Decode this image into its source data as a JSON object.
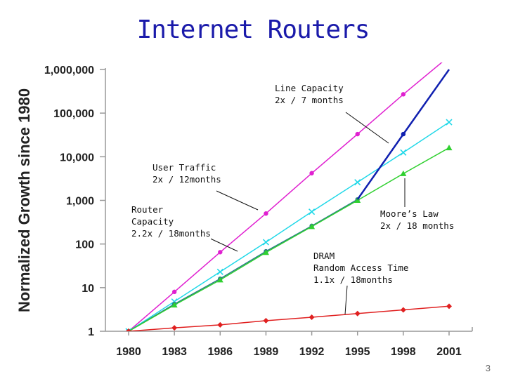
{
  "slide": {
    "title": "Internet Routers",
    "page_number": "3"
  },
  "chart_data": {
    "type": "line",
    "title": "Internet Routers",
    "ylabel": "Normalized Growth since 1980",
    "xlabel": "",
    "y_scale": "log",
    "ylim": [
      1,
      1000000
    ],
    "xlim": [
      1980,
      2002
    ],
    "grid": false,
    "x_ticks": [
      "1980",
      "1983",
      "1986",
      "1989",
      "1992",
      "1995",
      "1998",
      "2001"
    ],
    "y_ticks": [
      "1",
      "10",
      "100",
      "1,000",
      "10,000",
      "100,000",
      "1,000,000"
    ],
    "series": [
      {
        "key": "line-capacity",
        "color": "#e020d0",
        "marker": "circle",
        "x": [
          1980,
          1983,
          1986,
          1989,
          1992,
          1995,
          1998,
          2001
        ],
        "y": [
          1,
          8,
          65,
          500,
          4200,
          33000,
          270000,
          2000000
        ]
      },
      {
        "key": "user-traffic",
        "color": "#20d8e8",
        "marker": "x",
        "x": [
          1980,
          1983,
          1986,
          1989,
          1992,
          1995,
          1998,
          2001
        ],
        "y": [
          1,
          4.8,
          23,
          110,
          550,
          2600,
          12500,
          62000
        ]
      },
      {
        "key": "router-capacity",
        "color": "#2a7a8a",
        "marker": "circle",
        "x": [
          1980,
          1983,
          1986,
          1989,
          1992,
          1995
        ],
        "y": [
          1,
          4.2,
          16,
          68,
          260,
          1050
        ]
      },
      {
        "key": "moores-law",
        "color": "#30d030",
        "marker": "triangle",
        "x": [
          1980,
          1983,
          1986,
          1989,
          1992,
          1995,
          1998,
          2001
        ],
        "y": [
          1,
          4,
          15,
          64,
          250,
          1000,
          4100,
          16000
        ]
      },
      {
        "key": "router-capacity-ext",
        "color": "#1020b0",
        "marker": "circle",
        "x": [
          1995,
          1998,
          2001
        ],
        "y": [
          1050,
          33000,
          1000000
        ]
      },
      {
        "key": "dram",
        "color": "#e02020",
        "marker": "diamond",
        "x": [
          1980,
          1983,
          1986,
          1989,
          1992,
          1995,
          1998,
          2001
        ],
        "y": [
          1,
          1.2,
          1.4,
          1.75,
          2.1,
          2.55,
          3.1,
          3.75
        ]
      }
    ],
    "annotations": [
      {
        "key": "line-capacity",
        "lines": [
          "Line Capacity",
          "2x / 7 months"
        ]
      },
      {
        "key": "user-traffic",
        "lines": [
          "User Traffic",
          "2x / 12months"
        ]
      },
      {
        "key": "router-capacity",
        "lines": [
          "Router",
          "Capacity",
          "2.2x / 18months"
        ]
      },
      {
        "key": "moores-law",
        "lines": [
          "Moore’s Law",
          "2x / 18 months"
        ]
      },
      {
        "key": "dram",
        "lines": [
          "DRAM",
          "Random Access Time",
          "1.1x / 18months"
        ]
      }
    ]
  }
}
